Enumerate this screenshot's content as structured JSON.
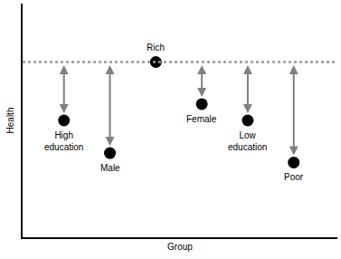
{
  "chart_data": {
    "type": "scatter",
    "xlabel": "Group",
    "ylabel": "Health",
    "categories": [
      "High education",
      "Male",
      "Rich",
      "Female",
      "Low education",
      "Poor"
    ],
    "values": [
      50,
      36,
      75,
      57,
      50,
      32
    ],
    "baseline": 75,
    "color": "#000000",
    "ylim": [
      0,
      100
    ],
    "tick_labels": false,
    "grid": false
  }
}
